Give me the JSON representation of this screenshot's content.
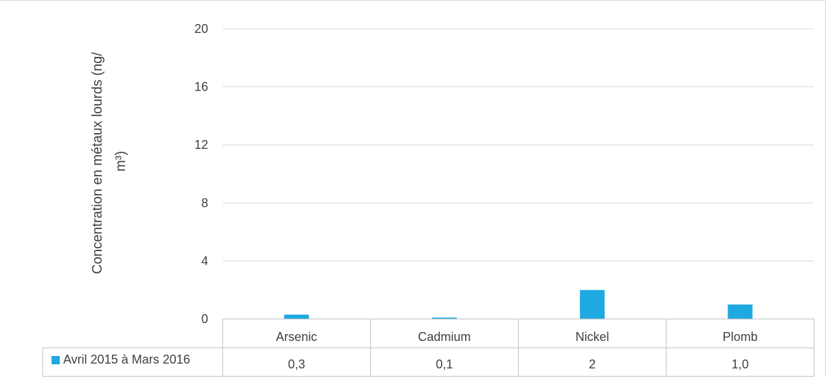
{
  "chart_data": {
    "type": "bar",
    "categories": [
      "Arsenic",
      "Cadmium",
      "Nickel",
      "Plomb"
    ],
    "series": [
      {
        "name": "Avril 2015 à Mars 2016",
        "values": [
          0.3,
          0.1,
          2,
          1.0
        ],
        "color": "#1fa9e1"
      }
    ],
    "table_values": [
      "0,3",
      "0,1",
      "2",
      "1,0"
    ],
    "ylabel_lines": [
      "Concentration en métaux lourds (ng/",
      "m³)"
    ],
    "ylim": [
      0,
      20
    ],
    "yticks": [
      "0",
      "4",
      "8",
      "12",
      "16",
      "20"
    ],
    "grid": true,
    "legend": "data-table"
  }
}
